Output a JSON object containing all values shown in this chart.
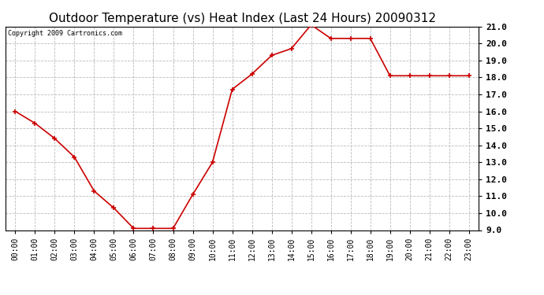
{
  "title": "Outdoor Temperature (vs) Heat Index (Last 24 Hours) 20090312",
  "copyright_text": "Copyright 2009 Cartronics.com",
  "x_labels": [
    "00:00",
    "01:00",
    "02:00",
    "03:00",
    "04:00",
    "05:00",
    "06:00",
    "07:00",
    "08:00",
    "09:00",
    "10:00",
    "11:00",
    "12:00",
    "13:00",
    "14:00",
    "15:00",
    "16:00",
    "17:00",
    "18:00",
    "19:00",
    "20:00",
    "21:00",
    "22:00",
    "23:00"
  ],
  "y_values": [
    16.0,
    15.3,
    14.4,
    13.3,
    11.3,
    10.3,
    9.1,
    9.1,
    9.1,
    11.1,
    13.0,
    17.3,
    18.2,
    19.3,
    19.7,
    21.1,
    20.3,
    20.3,
    20.3,
    18.1,
    18.1,
    18.1,
    18.1,
    18.1
  ],
  "line_color": "#cc0000",
  "marker": "+",
  "marker_color": "#cc0000",
  "marker_size": 5,
  "line_width": 1.2,
  "ylim": [
    9.0,
    21.0
  ],
  "yticks": [
    9.0,
    10.0,
    11.0,
    12.0,
    13.0,
    14.0,
    15.0,
    16.0,
    17.0,
    18.0,
    19.0,
    20.0,
    21.0
  ],
  "background_color": "#ffffff",
  "plot_bg_color": "#ffffff",
  "grid_color": "#bbbbbb",
  "grid_style": "--",
  "title_fontsize": 11,
  "copyright_fontsize": 6,
  "xtick_fontsize": 7,
  "ytick_fontsize": 8
}
